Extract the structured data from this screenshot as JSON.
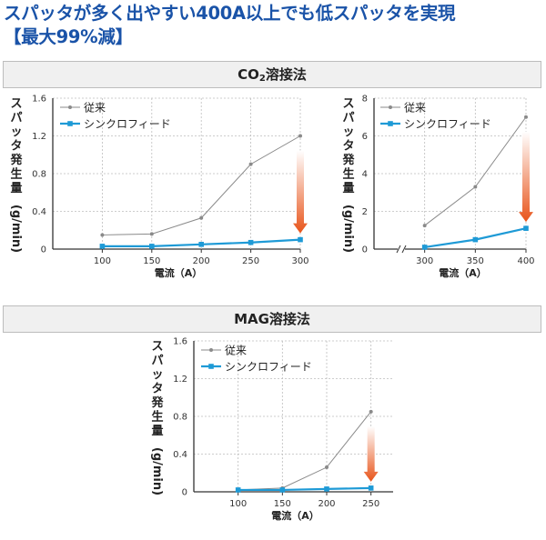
{
  "headline": {
    "line1": "スパッタが多く出やすい400A以上でも低スパッタを実現",
    "line2": "【最大99%減】"
  },
  "sections": {
    "co2": {
      "prefix": "CO",
      "sub": "2",
      "suffix": "溶接法"
    },
    "mag": {
      "title": "MAG溶接法"
    }
  },
  "colors": {
    "conventional": "#8a8a8a",
    "syncrofeed": "#1e9ad6",
    "arrow_top": "#ffffff",
    "arrow_bottom": "#e8541a",
    "grid": "#bdbdbd",
    "headline": "#1a53a8"
  },
  "legend": {
    "conventional": "従来",
    "syncrofeed": "シンクロフィード"
  },
  "axis_labels": {
    "x": "電流（A）",
    "y": [
      "ス",
      "パ",
      "ッ",
      "タ",
      "発",
      "生",
      "量",
      "(g/min)"
    ]
  },
  "chart_data": [
    {
      "type": "line",
      "title": "CO2溶接法",
      "xlabel": "電流（A）",
      "ylabel": "スパッタ発生量（g/min）",
      "categories": [
        100,
        150,
        200,
        250,
        300
      ],
      "xlim": [
        50,
        300
      ],
      "ylim": [
        0,
        1.6
      ],
      "yticks": [
        0,
        0.4,
        0.8,
        1.2,
        1.6
      ],
      "y_tick_labels": [
        "0",
        "0.4",
        "0.8",
        "1.2",
        "1.6"
      ],
      "series": [
        {
          "name": "従来",
          "values": [
            0.15,
            0.16,
            0.33,
            0.9,
            1.2
          ]
        },
        {
          "name": "シンクロフィード",
          "values": [
            0.03,
            0.03,
            0.05,
            0.07,
            0.1
          ]
        }
      ],
      "annotations": [
        "reduction arrow at 300A"
      ]
    },
    {
      "type": "line",
      "title": "CO2溶接法",
      "xlabel": "電流（A）",
      "ylabel": "スパッタ発生量（g/min）",
      "categories": [
        300,
        350,
        400
      ],
      "xlim": [
        250,
        400
      ],
      "ylim": [
        0,
        8
      ],
      "yticks": [
        0,
        2,
        4,
        6,
        8
      ],
      "y_tick_labels": [
        "0",
        "2",
        "4",
        "6",
        "8"
      ],
      "axis_break": "x",
      "series": [
        {
          "name": "従来",
          "values": [
            1.25,
            3.3,
            7.0
          ]
        },
        {
          "name": "シンクロフィード",
          "values": [
            0.1,
            0.5,
            1.1
          ]
        }
      ],
      "annotations": [
        "reduction arrow at 400A"
      ]
    },
    {
      "type": "line",
      "title": "MAG溶接法",
      "xlabel": "電流（A）",
      "ylabel": "スパッタ発生量（g/min）",
      "categories": [
        100,
        150,
        200,
        250
      ],
      "xlim": [
        50,
        275
      ],
      "ylim": [
        0,
        1.6
      ],
      "yticks": [
        0,
        0.4,
        0.8,
        1.2,
        1.6
      ],
      "y_tick_labels": [
        "0",
        "0.4",
        "0.8",
        "1.2",
        "1.6"
      ],
      "series": [
        {
          "name": "従来",
          "values": [
            0.02,
            0.04,
            0.26,
            0.85
          ]
        },
        {
          "name": "シンクロフィード",
          "values": [
            0.02,
            0.02,
            0.03,
            0.04
          ]
        }
      ],
      "annotations": [
        "reduction arrow at 250A"
      ]
    }
  ]
}
